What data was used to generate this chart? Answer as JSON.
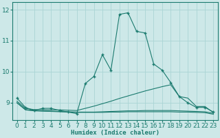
{
  "xlabel": "Humidex (Indice chaleur)",
  "bg_color": "#cde8e8",
  "grid_color": "#aad4d4",
  "line_color": "#1a7a6e",
  "xlim": [
    -0.5,
    23.5
  ],
  "ylim": [
    8.45,
    12.25
  ],
  "yticks": [
    9,
    10,
    11,
    12
  ],
  "xticks": [
    0,
    1,
    2,
    3,
    4,
    5,
    6,
    7,
    8,
    9,
    10,
    11,
    12,
    13,
    14,
    15,
    16,
    17,
    18,
    19,
    20,
    21,
    22,
    23
  ],
  "main_x": [
    0,
    1,
    2,
    3,
    4,
    5,
    6,
    7,
    8,
    9,
    10,
    11,
    12,
    13,
    14,
    15,
    16,
    17,
    18,
    19,
    20,
    21,
    22,
    23
  ],
  "main_y": [
    9.15,
    8.85,
    8.75,
    8.82,
    8.82,
    8.75,
    8.7,
    8.65,
    9.62,
    9.85,
    10.55,
    10.05,
    11.85,
    11.9,
    11.3,
    11.25,
    10.25,
    10.05,
    9.65,
    9.2,
    9.0,
    8.85,
    8.85,
    8.7
  ],
  "line2_x": [
    0,
    1,
    2,
    3,
    4,
    5,
    6,
    7,
    8,
    9,
    10,
    11,
    12,
    13,
    14,
    15,
    16,
    17,
    18,
    19,
    20,
    21,
    22,
    23
  ],
  "line2_y": [
    9.05,
    8.82,
    8.78,
    8.78,
    8.77,
    8.77,
    8.76,
    8.75,
    8.82,
    8.89,
    8.97,
    9.05,
    9.14,
    9.22,
    9.3,
    9.38,
    9.45,
    9.52,
    9.58,
    9.2,
    9.15,
    8.88,
    8.88,
    8.68
  ],
  "line3_x": [
    0,
    1,
    2,
    3,
    4,
    5,
    6,
    7,
    8,
    9,
    10,
    11,
    12,
    13,
    14,
    15,
    16,
    17,
    18,
    19,
    20,
    21,
    22,
    23
  ],
  "line3_y": [
    9.0,
    8.78,
    8.75,
    8.74,
    8.73,
    8.72,
    8.71,
    8.7,
    8.7,
    8.7,
    8.71,
    8.72,
    8.73,
    8.74,
    8.74,
    8.75,
    8.75,
    8.75,
    8.75,
    8.74,
    8.73,
    8.72,
    8.71,
    8.66
  ],
  "line4_x": [
    0,
    1,
    2,
    3,
    4,
    5,
    6,
    7,
    8,
    9,
    10,
    11,
    12,
    13,
    14,
    15,
    16,
    17,
    18,
    19,
    20,
    21,
    22,
    23
  ],
  "line4_y": [
    9.0,
    8.77,
    8.74,
    8.73,
    8.72,
    8.71,
    8.7,
    8.69,
    8.69,
    8.69,
    8.69,
    8.7,
    8.7,
    8.71,
    8.71,
    8.71,
    8.71,
    8.71,
    8.71,
    8.7,
    8.7,
    8.69,
    8.68,
    8.63
  ]
}
